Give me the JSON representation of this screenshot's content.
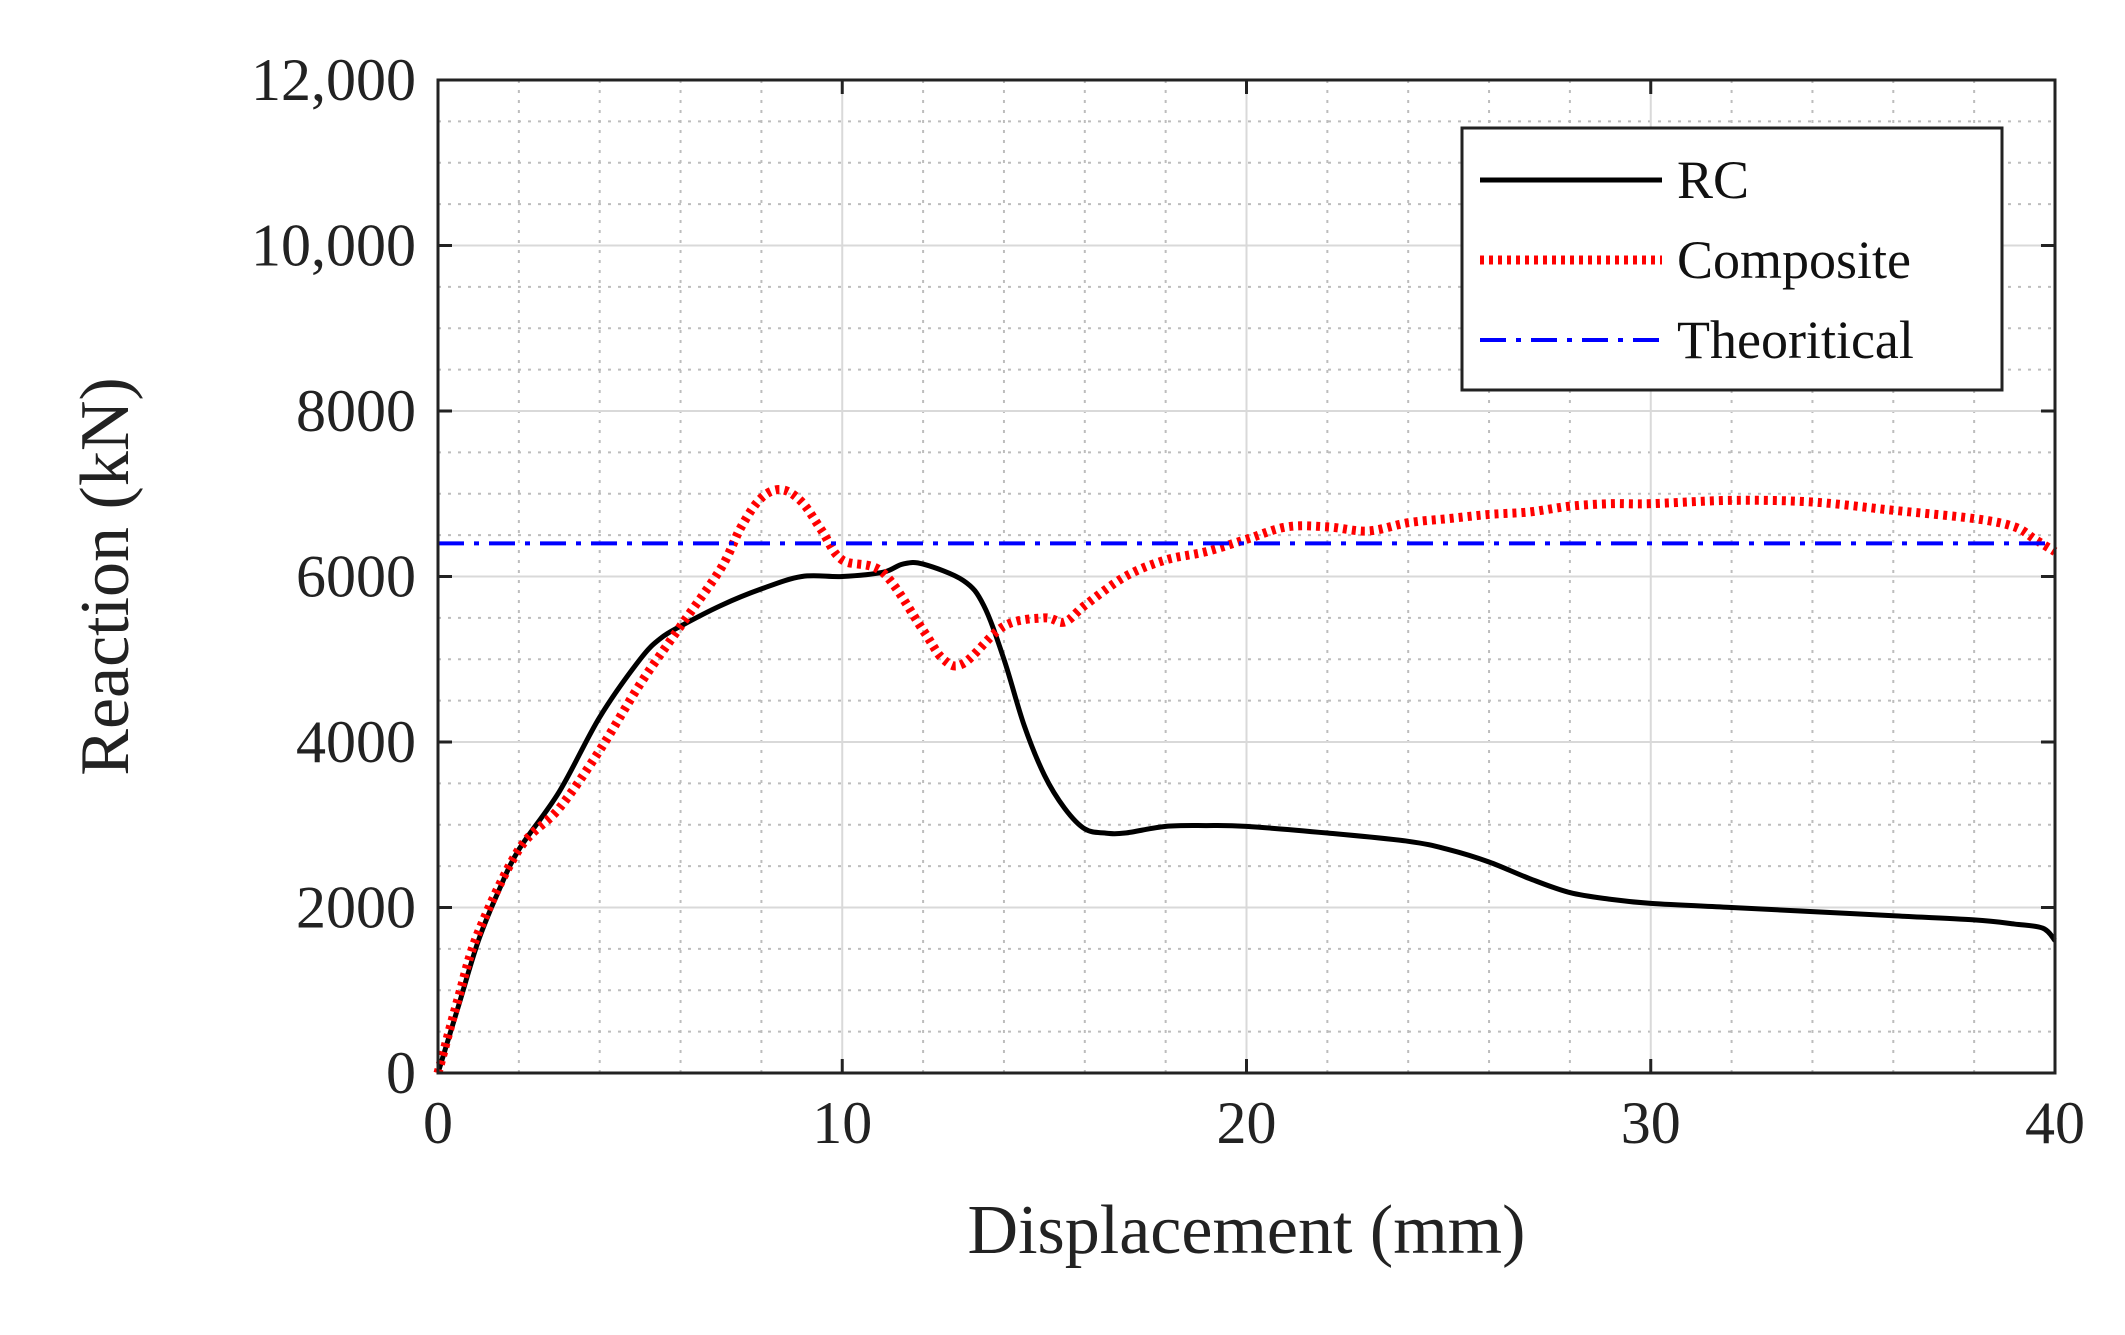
{
  "chart_data": {
    "type": "line",
    "title": "",
    "xlabel": "Displacement (mm)",
    "ylabel": "Reaction (kN)",
    "xlim": [
      0,
      40
    ],
    "ylim": [
      0,
      12000
    ],
    "x_ticks": [
      0,
      10,
      20,
      30,
      40
    ],
    "x_tick_labels": [
      "0",
      "10",
      "20",
      "30",
      "40"
    ],
    "y_ticks": [
      0,
      2000,
      4000,
      6000,
      8000,
      10000,
      12000
    ],
    "y_tick_labels": [
      "0",
      "2000",
      "4000",
      "6000",
      "8000",
      "10,000",
      "12,000"
    ],
    "grid": "major and minor",
    "legend_position": "top-right",
    "series": [
      {
        "name": "RC",
        "color": "#000000",
        "style": "solid",
        "x": [
          0,
          0.5,
          1,
          1.5,
          2,
          3,
          4,
          5,
          5.5,
          6,
          7,
          8,
          9,
          10,
          11,
          11.5,
          12,
          13,
          13.5,
          14,
          14.5,
          15,
          15.5,
          16,
          16.5,
          17,
          18,
          19,
          20,
          22,
          24,
          25,
          26,
          27,
          28,
          29,
          30,
          32,
          34,
          36,
          38,
          39,
          39.7,
          40
        ],
        "y": [
          0,
          800,
          1600,
          2200,
          2700,
          3400,
          4300,
          5000,
          5250,
          5400,
          5650,
          5850,
          6000,
          6000,
          6050,
          6150,
          6150,
          5950,
          5650,
          5000,
          4200,
          3600,
          3200,
          2950,
          2900,
          2900,
          2980,
          2990,
          2980,
          2900,
          2800,
          2700,
          2550,
          2350,
          2180,
          2100,
          2050,
          2000,
          1950,
          1900,
          1850,
          1800,
          1750,
          1600
        ]
      },
      {
        "name": "Composite",
        "color": "#ff0000",
        "style": "dotted",
        "x": [
          0,
          0.5,
          1,
          2,
          3,
          4,
          5,
          6,
          7,
          7.5,
          8,
          8.5,
          9,
          9.5,
          10,
          11,
          12,
          12.5,
          13,
          14,
          15,
          15.5,
          16,
          17,
          18,
          19,
          20,
          21,
          22,
          23,
          24,
          25,
          26,
          27,
          28,
          29,
          30,
          32,
          34,
          36,
          38,
          39,
          39.5,
          40
        ],
        "y": [
          0,
          900,
          1700,
          2700,
          3200,
          3900,
          4700,
          5400,
          6100,
          6600,
          6950,
          7050,
          6900,
          6550,
          6200,
          6050,
          5350,
          5000,
          4950,
          5400,
          5500,
          5450,
          5650,
          6000,
          6200,
          6300,
          6450,
          6600,
          6600,
          6550,
          6650,
          6700,
          6750,
          6780,
          6850,
          6880,
          6880,
          6920,
          6900,
          6800,
          6700,
          6600,
          6450,
          6300
        ]
      },
      {
        "name": "Theoritical",
        "color": "#0000ff",
        "style": "dash-dot",
        "x": [
          0,
          40
        ],
        "y": [
          6400,
          6400
        ]
      }
    ]
  }
}
